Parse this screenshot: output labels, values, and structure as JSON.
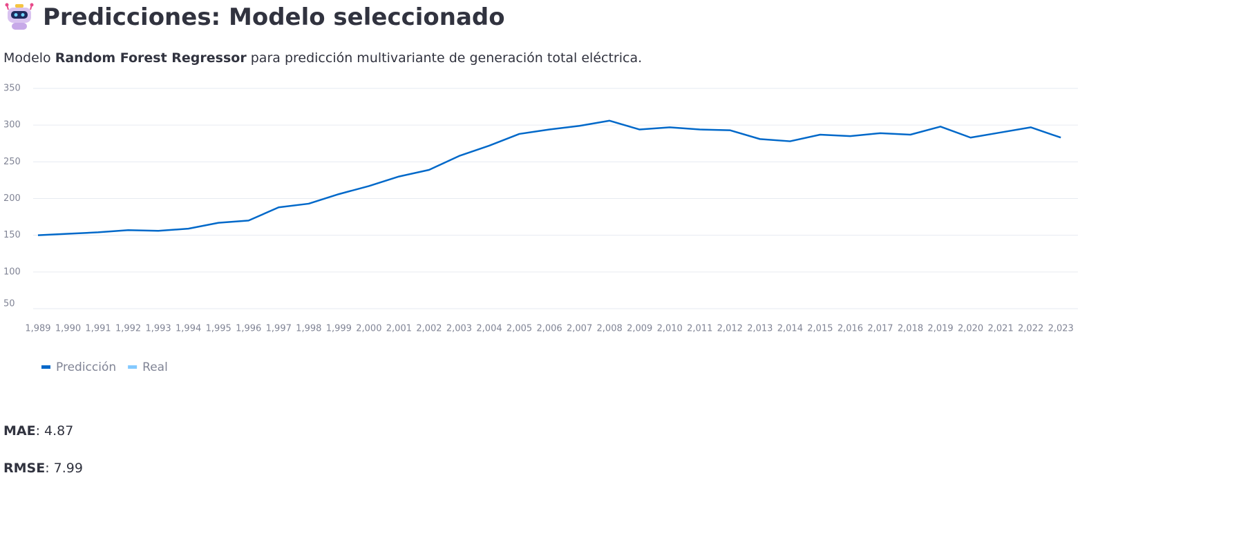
{
  "header": {
    "title": "Predicciones: Modelo seleccionado"
  },
  "description": {
    "before": "Modelo",
    "bold": "Random Forest Regressor",
    "after": "para predicción multivariante de generación total eléctrica."
  },
  "chart_data": {
    "type": "line",
    "x": [
      1989,
      1990,
      1991,
      1992,
      1993,
      1994,
      1995,
      1996,
      1997,
      1998,
      1999,
      2000,
      2001,
      2002,
      2003,
      2004,
      2005,
      2006,
      2007,
      2008,
      2009,
      2010,
      2011,
      2012,
      2013,
      2014,
      2015,
      2016,
      2017,
      2018,
      2019,
      2020,
      2021,
      2022,
      2023
    ],
    "series": [
      {
        "name": "Predicción",
        "color": "#0068c9",
        "values": [
          150,
          152,
          154,
          157,
          156,
          159,
          167,
          170,
          188,
          193,
          206,
          217,
          230,
          239,
          258,
          272,
          288,
          294,
          299,
          306,
          294,
          297,
          294,
          293,
          281,
          278,
          287,
          285,
          289,
          287,
          298,
          283,
          290,
          297,
          283
        ]
      },
      {
        "name": "Real",
        "color": "#83c9ff",
        "values": [
          null,
          null,
          null,
          null,
          null,
          null,
          null,
          null,
          null,
          null,
          null,
          null,
          null,
          null,
          null,
          null,
          null,
          null,
          null,
          null,
          null,
          null,
          null,
          null,
          null,
          null,
          null,
          null,
          null,
          null,
          null,
          null,
          null,
          null,
          null
        ]
      }
    ],
    "xlim": [
      1988.84,
      2023.57
    ],
    "xticks": [
      {
        "value": 1989,
        "label": "1,989"
      },
      {
        "value": 1990,
        "label": "1,990"
      },
      {
        "value": 1991,
        "label": "1,991"
      },
      {
        "value": 1992,
        "label": "1,992"
      },
      {
        "value": 1993,
        "label": "1,993"
      },
      {
        "value": 1994,
        "label": "1,994"
      },
      {
        "value": 1995,
        "label": "1,995"
      },
      {
        "value": 1996,
        "label": "1,996"
      },
      {
        "value": 1997,
        "label": "1,997"
      },
      {
        "value": 1998,
        "label": "1,998"
      },
      {
        "value": 1999,
        "label": "1,999"
      },
      {
        "value": 2000,
        "label": "2,000"
      },
      {
        "value": 2001,
        "label": "2,001"
      },
      {
        "value": 2002,
        "label": "2,002"
      },
      {
        "value": 2003,
        "label": "2,003"
      },
      {
        "value": 2004,
        "label": "2,004"
      },
      {
        "value": 2005,
        "label": "2,005"
      },
      {
        "value": 2006,
        "label": "2,006"
      },
      {
        "value": 2007,
        "label": "2,007"
      },
      {
        "value": 2008,
        "label": "2,008"
      },
      {
        "value": 2009,
        "label": "2,009"
      },
      {
        "value": 2010,
        "label": "2,010"
      },
      {
        "value": 2011,
        "label": "2,011"
      },
      {
        "value": 2012,
        "label": "2,012"
      },
      {
        "value": 2013,
        "label": "2,013"
      },
      {
        "value": 2014,
        "label": "2,014"
      },
      {
        "value": 2015,
        "label": "2,015"
      },
      {
        "value": 2016,
        "label": "2,016"
      },
      {
        "value": 2017,
        "label": "2,017"
      },
      {
        "value": 2018,
        "label": "2,018"
      },
      {
        "value": 2019,
        "label": "2,019"
      },
      {
        "value": 2020,
        "label": "2,020"
      },
      {
        "value": 2021,
        "label": "2,021"
      },
      {
        "value": 2022,
        "label": "2,022"
      },
      {
        "value": 2023,
        "label": "2,023"
      }
    ],
    "ylim": [
      50,
      350
    ],
    "yticks": [
      50,
      100,
      150,
      200,
      250,
      300,
      350
    ],
    "grid": true,
    "legend": "bottom-left"
  },
  "metrics": [
    {
      "label": "MAE",
      "text": ": 4.87"
    },
    {
      "label": "RMSE",
      "text": ": 7.99"
    }
  ]
}
